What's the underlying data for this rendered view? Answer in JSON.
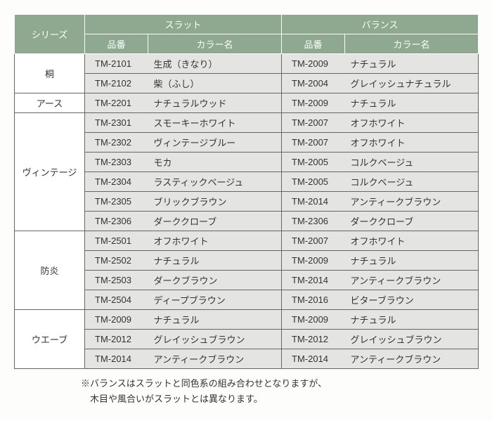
{
  "header": {
    "series": "シリーズ",
    "slat": "スラット",
    "balance": "バランス",
    "code": "品番",
    "color": "カラー名"
  },
  "colwidths": {
    "series": 100,
    "code": 90,
    "name": 190
  },
  "groups": [
    {
      "series": "桐",
      "rows": [
        {
          "s_code": "TM-2101",
          "s_name": "生成（きなり）",
          "b_code": "TM-2009",
          "b_name": "ナチュラル"
        },
        {
          "s_code": "TM-2102",
          "s_name": "柴（ふし）",
          "b_code": "TM-2004",
          "b_name": "グレイッシュナチュラル"
        }
      ]
    },
    {
      "series": "アース",
      "rows": [
        {
          "s_code": "TM-2201",
          "s_name": "ナチュラルウッド",
          "b_code": "TM-2009",
          "b_name": "ナチュラル"
        }
      ]
    },
    {
      "series": "ヴィンテージ",
      "rows": [
        {
          "s_code": "TM-2301",
          "s_name": "スモーキーホワイト",
          "b_code": "TM-2007",
          "b_name": "オフホワイト"
        },
        {
          "s_code": "TM-2302",
          "s_name": "ヴィンテージブルー",
          "b_code": "TM-2007",
          "b_name": "オフホワイト"
        },
        {
          "s_code": "TM-2303",
          "s_name": "モカ",
          "b_code": "TM-2005",
          "b_name": "コルクベージュ"
        },
        {
          "s_code": "TM-2304",
          "s_name": "ラスティックベージュ",
          "b_code": "TM-2005",
          "b_name": "コルクベージュ"
        },
        {
          "s_code": "TM-2305",
          "s_name": "ブリックブラウン",
          "b_code": "TM-2014",
          "b_name": "アンティークブラウン"
        },
        {
          "s_code": "TM-2306",
          "s_name": "ダーククローブ",
          "b_code": "TM-2306",
          "b_name": "ダーククローブ"
        }
      ]
    },
    {
      "series": "防炎",
      "rows": [
        {
          "s_code": "TM-2501",
          "s_name": "オフホワイト",
          "b_code": "TM-2007",
          "b_name": "オフホワイト"
        },
        {
          "s_code": "TM-2502",
          "s_name": "ナチュラル",
          "b_code": "TM-2009",
          "b_name": "ナチュラル"
        },
        {
          "s_code": "TM-2503",
          "s_name": "ダークブラウン",
          "b_code": "TM-2014",
          "b_name": "アンティークブラウン"
        },
        {
          "s_code": "TM-2504",
          "s_name": "ディープブラウン",
          "b_code": "TM-2016",
          "b_name": "ビターブラウン"
        }
      ]
    },
    {
      "series": "ウエーブ",
      "rows": [
        {
          "s_code": "TM-2009",
          "s_name": "ナチュラル",
          "b_code": "TM-2009",
          "b_name": "ナチュラル"
        },
        {
          "s_code": "TM-2012",
          "s_name": "グレイッシュブラウン",
          "b_code": "TM-2012",
          "b_name": "グレイッシュブラウン"
        },
        {
          "s_code": "TM-2014",
          "s_name": "アンティークブラウン",
          "b_code": "TM-2014",
          "b_name": "アンティークブラウン"
        }
      ]
    }
  ],
  "footnote": {
    "line1": "※バランスはスラットと同色系の組み合わせとなりますが、",
    "line2": "木目や風合いがスラットとは異なります。"
  }
}
